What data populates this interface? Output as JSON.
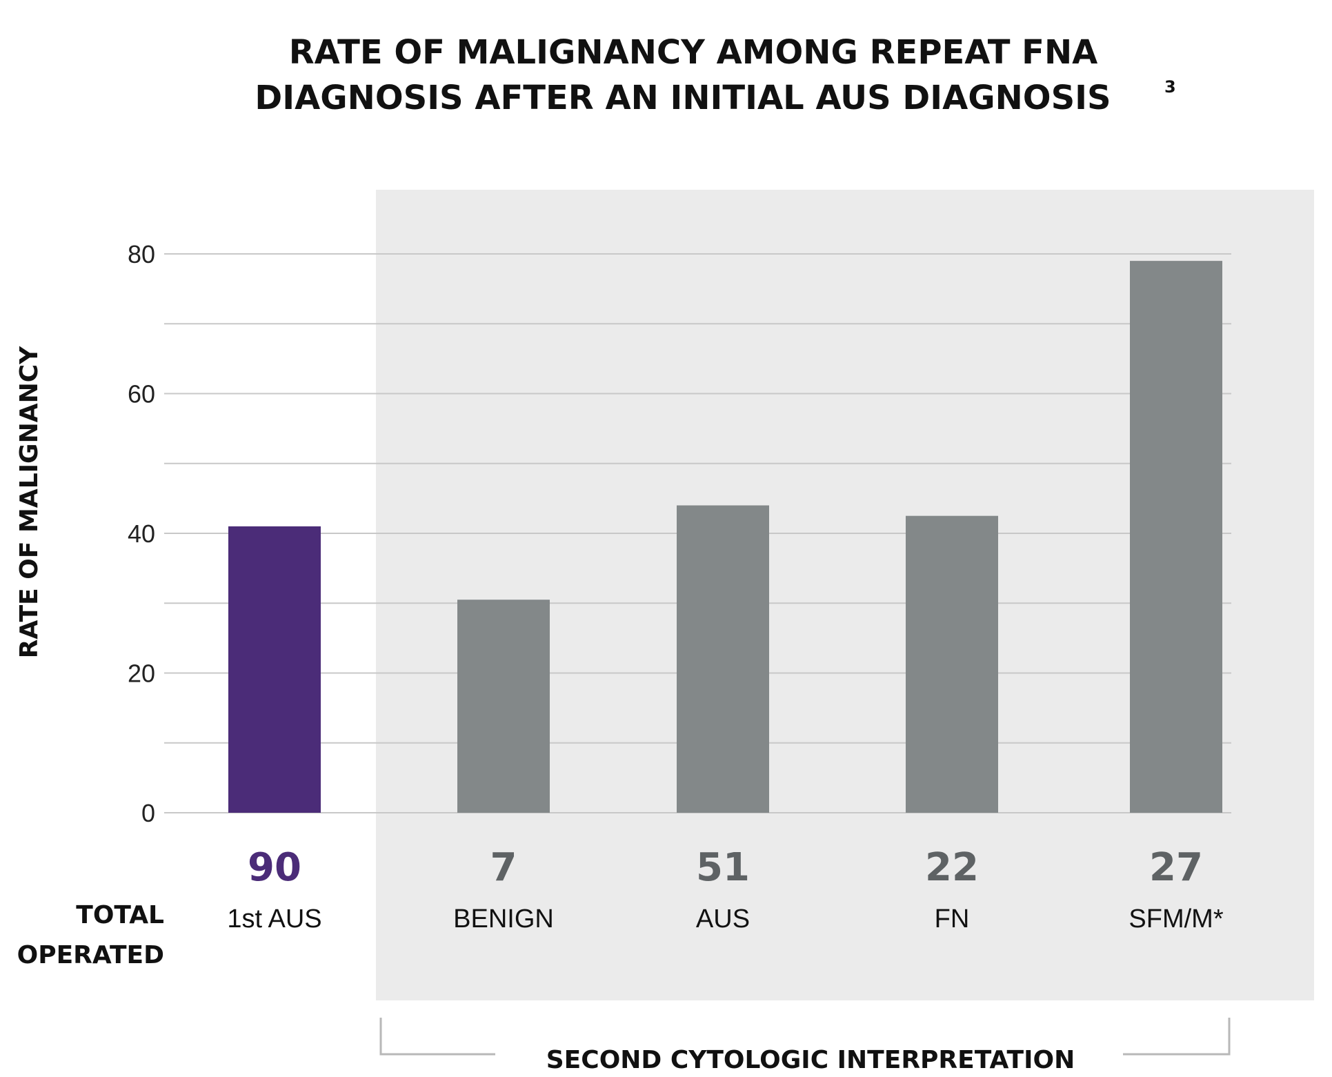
{
  "chart_data": {
    "type": "bar",
    "title_line1": "RATE OF MALIGNANCY AMONG REPEAT FNA",
    "title_line2": "DIAGNOSIS AFTER AN INITIAL AUS DIAGNOSIS",
    "title_superscript": "3",
    "ylabel": "RATE OF MALIGNANCY",
    "xlabel": "",
    "ylim": [
      0,
      80
    ],
    "yticks": [
      "0",
      "20",
      "40",
      "60",
      "80"
    ],
    "grid": true,
    "categories": [
      "1st AUS",
      "BENIGN",
      "AUS",
      "FN",
      "SFM/M*"
    ],
    "values": [
      41,
      30.5,
      44,
      42.5,
      79
    ],
    "totals_operated": [
      "90",
      "7",
      "51",
      "22",
      "27"
    ],
    "totals_row_label_line1": "TOTAL",
    "totals_row_label_line2": "OPERATED",
    "group_label": "SECOND CYTOLOGIC INTERPRETATION",
    "colors": {
      "first": "#4b2c78",
      "others_bar": "#838889",
      "others_count": "#5e6264",
      "panel_bg": "#ebebeb",
      "grid": "#c8c8c8"
    }
  }
}
